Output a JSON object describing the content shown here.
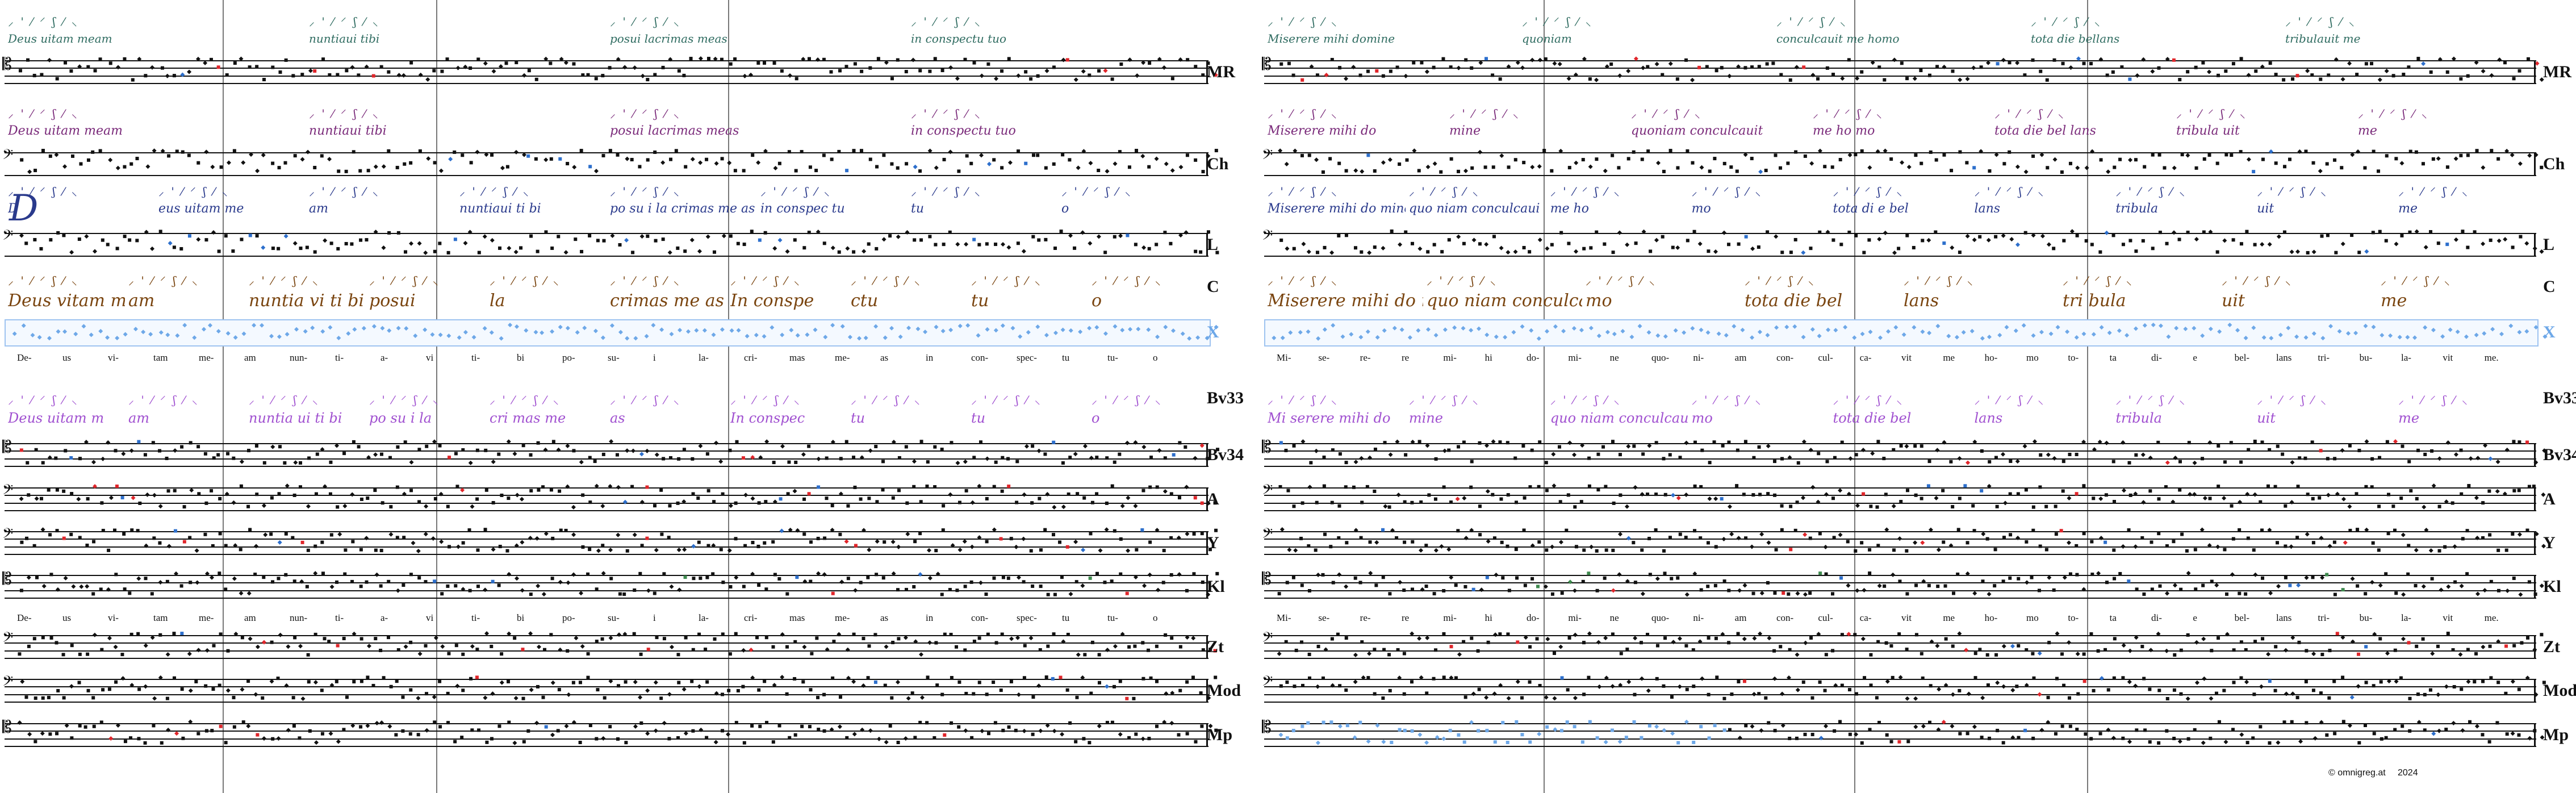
{
  "source_labels": [
    "MR",
    "Ch",
    "L",
    "C",
    "X",
    "Bv33",
    "Bv34",
    "A",
    "Y",
    "Kl",
    "Zt",
    "Mod",
    "Mp"
  ],
  "left": {
    "syllables_top": [
      "De-",
      "us",
      "vi-",
      "tam",
      "me-",
      "am",
      "nun-",
      "ti-",
      "a-",
      "vi",
      "ti-",
      "bi",
      "po-",
      "su-",
      "i",
      "la-",
      "cri-",
      "mas",
      "me-",
      "as",
      "in",
      "con-",
      "spec-",
      "tu",
      "tu-",
      "o"
    ],
    "syllables_bottom": [
      "De-",
      "us",
      "vi-",
      "tam",
      "me-",
      "am",
      "nun-",
      "ti-",
      "a-",
      "vi",
      "ti-",
      "bi",
      "po-",
      "su-",
      "i",
      "la-",
      "cri-",
      "mas",
      "me-",
      "as",
      "in",
      "con-",
      "spec-",
      "tu",
      "tu-",
      "o"
    ],
    "mr_text": [
      "Deus uitam meam",
      "nuntiaui tibi",
      "posui lacrimas meas",
      "in conspectu tuo"
    ],
    "ch_text": [
      "Deus uitam meam",
      "nuntiaui tibi",
      "posui lacrimas meas",
      "in conspectu tuo"
    ],
    "l_text": [
      "D",
      "eus uitam me",
      "am",
      "nuntiaui ti bi",
      "po su i la crimas me as",
      "in conspec tu",
      "tu",
      "o"
    ],
    "c_text": [
      "Deus vitam me",
      "am",
      "nuntia vi ti bi",
      "posui",
      "la",
      "crimas me as",
      "In conspe",
      "ctu",
      "tu",
      "o"
    ],
    "bv33_text": [
      "Deus uitam m",
      "am",
      "nuntia ui ti bi",
      "po su i la",
      "cri mas me",
      "as",
      "In conspec",
      "tu",
      "tu",
      "o"
    ]
  },
  "right": {
    "syllables_top": [
      "Mi-",
      "se-",
      "re-",
      "re",
      "mi-",
      "hi",
      "do-",
      "mi-",
      "ne",
      "quo-",
      "ni-",
      "am",
      "con-",
      "cul-",
      "ca-",
      "vit",
      "me",
      "ho-",
      "mo",
      "to-",
      "ta",
      "di-",
      "e",
      "bel-",
      "lans",
      "tri-",
      "bu-",
      "la-",
      "vit",
      "me."
    ],
    "syllables_bottom": [
      "Mi-",
      "se-",
      "re-",
      "re",
      "mi-",
      "hi",
      "do-",
      "mi-",
      "ne",
      "quo-",
      "ni-",
      "am",
      "con-",
      "cul-",
      "ca-",
      "vit",
      "me",
      "ho-",
      "mo",
      "to-",
      "ta",
      "di-",
      "e",
      "bel-",
      "lans",
      "tri-",
      "bu-",
      "la-",
      "vit",
      "me."
    ],
    "mr_text": [
      "Miserere mihi domine",
      "quoniam",
      "conculcauit me homo",
      "tota die bellans",
      "tribulauit me"
    ],
    "ch_text": [
      "Miserere mihi do",
      "mine",
      "quoniam conculcauit",
      "me ho mo",
      "tota die bel lans",
      "tribula uit",
      "me"
    ],
    "l_text": [
      "Miserere mihi do mine",
      "quo niam conculcaui",
      "me ho",
      "mo",
      "tota di e bel",
      "lans",
      "tribula",
      "uit",
      "me"
    ],
    "c_text": [
      "Miserere mihi do mine",
      "quo niam conculca uit me ho",
      "mo",
      "tota die bel",
      "lans",
      "tri bula",
      "uit",
      "me"
    ],
    "bv33_text": [
      "Mi serere mihi do",
      "mine",
      "quo niam conculcauit me ho",
      "mo",
      "tota die bel",
      "lans",
      "tribula",
      "uit",
      "me"
    ]
  },
  "copyright": "© omnigreg.at",
  "year": "2024",
  "colors": {
    "mr": "#2e6b60",
    "ch": "#7a2a7a",
    "l": "#2a3a8c",
    "c": "#7a4510",
    "x": "#6ea8e8",
    "bv33": "#a050d0",
    "red": "#e0262b",
    "blue": "#2d6fcc",
    "green": "#3e8a4e"
  }
}
